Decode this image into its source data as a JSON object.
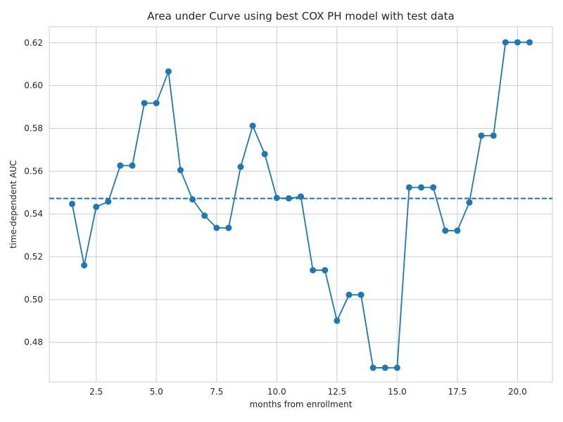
{
  "chart_data": {
    "type": "line",
    "title": "Area under Curve using best COX PH model with test data",
    "xlabel": "months from enrollment",
    "ylabel": "time-dependent AUC",
    "xlim": [
      0.55,
      21.45
    ],
    "ylim": [
      0.4615,
      0.6275
    ],
    "x_ticks": [
      2.5,
      5.0,
      7.5,
      10.0,
      12.5,
      15.0,
      17.5,
      20.0
    ],
    "x_tick_labels": [
      "2.5",
      "5.0",
      "7.5",
      "10.0",
      "12.5",
      "15.0",
      "17.5",
      "20.0"
    ],
    "y_ticks": [
      0.48,
      0.5,
      0.52,
      0.54,
      0.56,
      0.58,
      0.6,
      0.62
    ],
    "y_tick_labels": [
      "0.48",
      "0.50",
      "0.52",
      "0.54",
      "0.56",
      "0.58",
      "0.60",
      "0.62"
    ],
    "grid": true,
    "series": [
      {
        "color": "#1f77b4",
        "marker": "circle",
        "x": [
          1.5,
          2.0,
          2.5,
          3.0,
          3.5,
          4.0,
          4.5,
          5.0,
          5.5,
          6.0,
          6.5,
          7.0,
          7.5,
          8.0,
          8.5,
          9.0,
          9.5,
          10.0,
          10.5,
          11.0,
          11.5,
          12.0,
          12.5,
          13.0,
          13.5,
          14.0,
          14.5,
          15.0,
          15.5,
          16.0,
          16.5,
          17.0,
          17.5,
          18.0,
          18.5,
          19.0,
          19.5,
          20.0,
          20.5
        ],
        "y": [
          0.5447,
          0.516,
          0.5433,
          0.5458,
          0.5626,
          0.5626,
          0.5918,
          0.5918,
          0.6066,
          0.5605,
          0.5468,
          0.5392,
          0.5335,
          0.5335,
          0.562,
          0.5812,
          0.568,
          0.5475,
          0.5473,
          0.5481,
          0.5137,
          0.5137,
          0.4901,
          0.5022,
          0.5022,
          0.4681,
          0.4681,
          0.4681,
          0.5524,
          0.5524,
          0.5524,
          0.5322,
          0.5322,
          0.5454,
          0.5766,
          0.5766,
          0.6202,
          0.6202,
          0.6202
        ]
      }
    ],
    "reference_line": {
      "y": 0.5472,
      "style": "dashed",
      "color": "#1f77b4"
    }
  }
}
